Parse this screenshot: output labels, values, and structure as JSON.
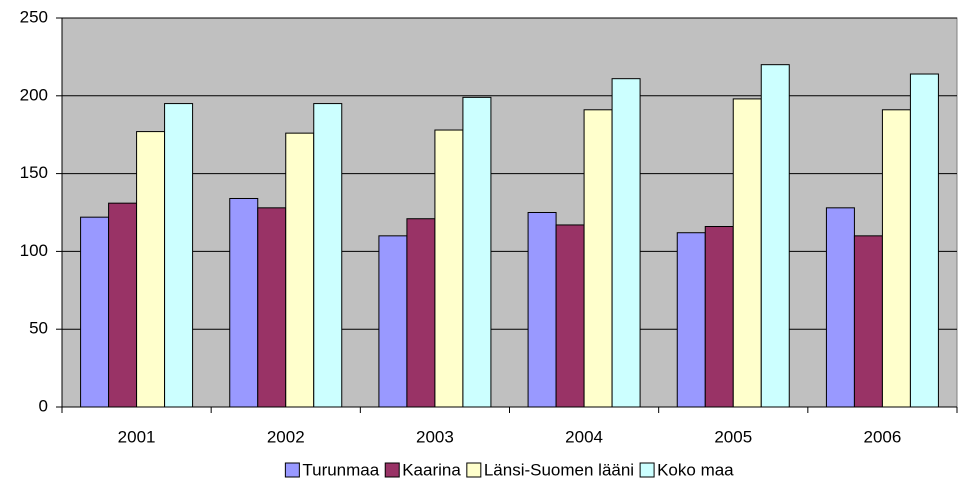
{
  "chart_data": {
    "type": "bar",
    "categories": [
      "2001",
      "2002",
      "2003",
      "2004",
      "2005",
      "2006"
    ],
    "series": [
      {
        "name": "Turunmaa",
        "color": "#9999ff",
        "values": [
          122,
          134,
          110,
          125,
          112,
          128
        ]
      },
      {
        "name": "Kaarina",
        "color": "#993366",
        "values": [
          131,
          128,
          121,
          117,
          116,
          110
        ]
      },
      {
        "name": "Länsi-Suomen lääni",
        "color": "#ffffcc",
        "values": [
          177,
          176,
          178,
          191,
          198,
          191
        ]
      },
      {
        "name": "Koko maa",
        "color": "#ccffff",
        "values": [
          195,
          195,
          199,
          211,
          220,
          214
        ]
      }
    ],
    "ylim": [
      0,
      250
    ],
    "yticks": [
      0,
      50,
      100,
      150,
      200,
      250
    ],
    "grid": true,
    "legend": "bottom"
  }
}
